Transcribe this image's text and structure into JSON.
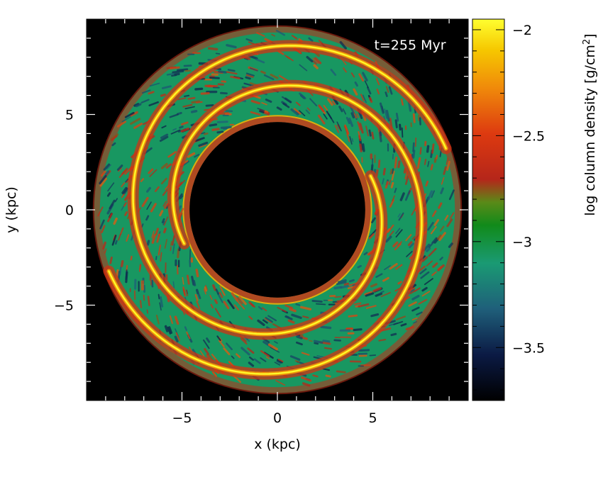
{
  "chart_data": {
    "type": "heatmap",
    "title": "",
    "annotation": "t=255 Myr",
    "xlabel": "x (kpc)",
    "ylabel": "y (kpc)",
    "xlim": [
      -10,
      10
    ],
    "ylim": [
      -10,
      10
    ],
    "x_ticks": [
      -5,
      0,
      5
    ],
    "y_ticks": [
      -5,
      0,
      5
    ],
    "x_tick_labels": [
      "−5",
      "0",
      "5"
    ],
    "y_tick_labels": [
      "−5",
      "0",
      "5"
    ],
    "colorbar": {
      "label_prefix": "log column density [g/cm",
      "label_exp": "2",
      "label_suffix": "]",
      "range": [
        -3.75,
        -1.95
      ],
      "ticks": [
        -2,
        -2.5,
        -3,
        -3.5
      ],
      "tick_labels": [
        "−2",
        "−2.5",
        "−3",
        "−3.5"
      ],
      "colormap": [
        {
          "v": 0.0,
          "c": "#000000"
        },
        {
          "v": 0.12,
          "c": "#0b1a44"
        },
        {
          "v": 0.24,
          "c": "#1f5f7a"
        },
        {
          "v": 0.36,
          "c": "#1a9a73"
        },
        {
          "v": 0.46,
          "c": "#118a1a"
        },
        {
          "v": 0.52,
          "c": "#5a8a18"
        },
        {
          "v": 0.58,
          "c": "#b5261a"
        },
        {
          "v": 0.7,
          "c": "#dd3a10"
        },
        {
          "v": 0.82,
          "c": "#f08a0a"
        },
        {
          "v": 0.92,
          "c": "#f6c800"
        },
        {
          "v": 1.0,
          "c": "#ffff30"
        }
      ]
    },
    "structure": {
      "hole_radius_kpc": 4.6,
      "disk_radius_kpc": 9.6,
      "dense_rings": [
        {
          "r0": 5.2,
          "r1": 9.4,
          "phase_deg": 200
        },
        {
          "r0": 5.2,
          "r1": 9.4,
          "phase_deg": 20
        }
      ]
    }
  }
}
